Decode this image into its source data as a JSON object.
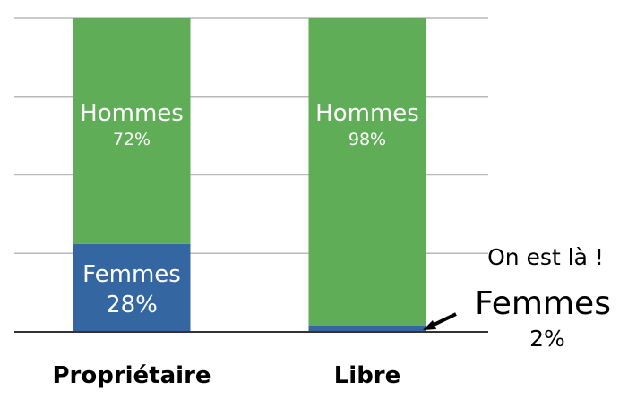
{
  "chart_data": {
    "type": "bar",
    "stacked": true,
    "normalized": true,
    "categories": [
      "Propriétaire",
      "Libre"
    ],
    "series": [
      {
        "name": "Femmes",
        "values": [
          28,
          2
        ],
        "labels": [
          "28%",
          "2%"
        ],
        "color": "#3467a2"
      },
      {
        "name": "Hommes",
        "values": [
          72,
          98
        ],
        "labels": [
          "72%",
          "98%"
        ],
        "color": "#5fad56"
      }
    ],
    "ylim": [
      0,
      100
    ],
    "grid": true,
    "annotation": {
      "text": "On est là !",
      "target": "Libre",
      "series_label": "Femmes",
      "value_label": "2%"
    }
  },
  "colors": {
    "grid": "#b9b9b9",
    "baseline": "#333333",
    "text_on_bar": "#ffffff"
  }
}
